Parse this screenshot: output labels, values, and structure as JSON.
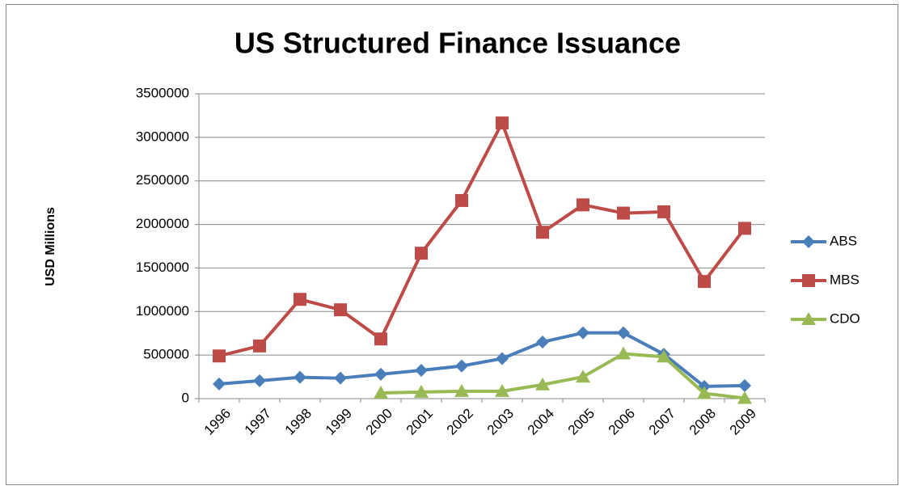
{
  "chart_data": {
    "type": "line",
    "title": "US Structured Finance Issuance",
    "y_label": "USD Millions",
    "categories": [
      "1996",
      "1997",
      "1998",
      "1999",
      "2000",
      "2001",
      "2002",
      "2003",
      "2004",
      "2005",
      "2006",
      "2007",
      "2008",
      "2009"
    ],
    "series": [
      {
        "name": "ABS",
        "color": "#4a7ebb",
        "marker": "diamond",
        "values": [
          168000,
          205000,
          245000,
          235000,
          280000,
          325000,
          375000,
          460000,
          650000,
          755000,
          755000,
          510000,
          140000,
          150000
        ]
      },
      {
        "name": "MBS",
        "color": "#be4b48",
        "marker": "square",
        "values": [
          490000,
          605000,
          1140000,
          1020000,
          685000,
          1670000,
          2275000,
          3165000,
          1910000,
          2225000,
          2130000,
          2145000,
          1345000,
          1955000
        ]
      },
      {
        "name": "CDO",
        "color": "#98b954",
        "marker": "triangle",
        "values": [
          null,
          null,
          null,
          null,
          65000,
          75000,
          85000,
          85000,
          160000,
          250000,
          515000,
          480000,
          60000,
          5000
        ]
      }
    ],
    "ylim": [
      0,
      3500000
    ],
    "yticks": [
      0,
      500000,
      1000000,
      1500000,
      2000000,
      2500000,
      3000000,
      3500000
    ],
    "grid": true,
    "legend": "right"
  }
}
